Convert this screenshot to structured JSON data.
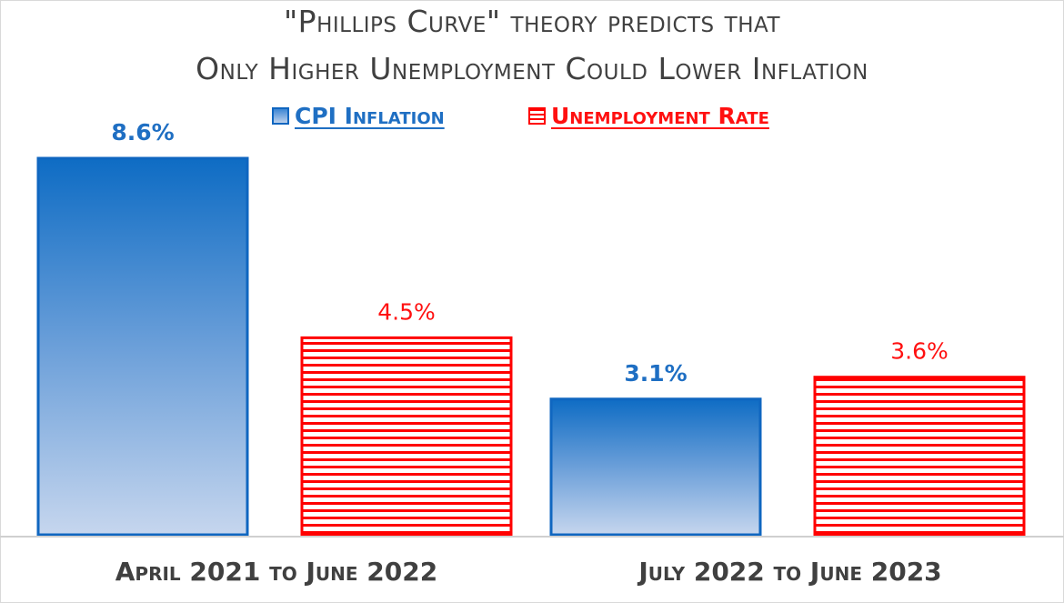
{
  "chart_data": {
    "type": "bar",
    "title_lines": [
      "\"Phillips Curve\" theory predicts that",
      "Only Higher Unemployment Could Lower Inflation"
    ],
    "categories": [
      "April 2021 to June 2022",
      "July 2022 to June 2023"
    ],
    "series": [
      {
        "name": "CPI Inflation",
        "values": [
          8.6,
          3.1
        ],
        "labels": [
          "8.6%",
          "3.1%"
        ],
        "color": "#1f6fc3",
        "style": "gradient"
      },
      {
        "name": "Unemployment Rate",
        "values": [
          4.5,
          3.6
        ],
        "labels": [
          "4.5%",
          "3.6%"
        ],
        "color": "#ff0000",
        "style": "horizontal-stripes"
      }
    ],
    "ylim": [
      0,
      8.6
    ],
    "grid": false,
    "legend": "top"
  }
}
